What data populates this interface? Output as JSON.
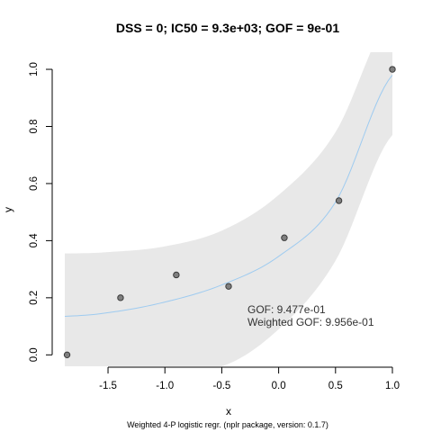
{
  "chart_data": {
    "type": "scatter",
    "title": "DSS = 0; IC50 = 9.3e+03; GOF = 9e-01",
    "xlabel": "x",
    "ylabel": "y",
    "subtitle": "Weighted 4-P logistic regr. (nplr package, version: 0.1.7)",
    "xlim": [
      -1.88,
      1.0
    ],
    "ylim": [
      -0.04,
      1.06
    ],
    "x_ticks": [
      -1.5,
      -1.0,
      -0.5,
      0.0,
      0.5,
      1.0
    ],
    "x_tick_labels": [
      "-1.5",
      "-1.0",
      "-0.5",
      "0.0",
      "0.5",
      "1.0"
    ],
    "y_ticks": [
      0.0,
      0.2,
      0.4,
      0.6,
      0.8,
      1.0
    ],
    "y_tick_labels": [
      "0.0",
      "0.2",
      "0.4",
      "0.6",
      "0.8",
      "1.0"
    ],
    "points": {
      "x": [
        -1.86,
        -1.39,
        -0.9,
        -0.44,
        0.05,
        0.53,
        1.0
      ],
      "y": [
        0.0,
        0.2,
        0.28,
        0.24,
        0.41,
        0.54,
        1.0
      ]
    },
    "fit_curve": {
      "x": [
        -1.88,
        -1.5,
        -1.0,
        -0.5,
        0.0,
        0.5,
        1.0
      ],
      "y": [
        0.135,
        0.148,
        0.185,
        0.245,
        0.345,
        0.535,
        0.98
      ]
    },
    "confidence_band": {
      "x": [
        -1.88,
        -1.5,
        -1.0,
        -0.5,
        0.0,
        0.5,
        1.0
      ],
      "upper": [
        0.355,
        0.36,
        0.38,
        0.435,
        0.56,
        0.78,
        1.2
      ],
      "lower": [
        -0.04,
        -0.04,
        -0.04,
        -0.04,
        0.09,
        0.33,
        0.77
      ]
    },
    "annotations": [
      "GOF: 9.477e-01",
      "Weighted GOF: 9.956e-01"
    ],
    "grid": false,
    "colors": {
      "band": "#e8e8e8",
      "curve": "#9ecbf0",
      "point_fill": "#7f7f7f",
      "point_stroke": "#3a3a3a",
      "axis": "#000000"
    }
  }
}
